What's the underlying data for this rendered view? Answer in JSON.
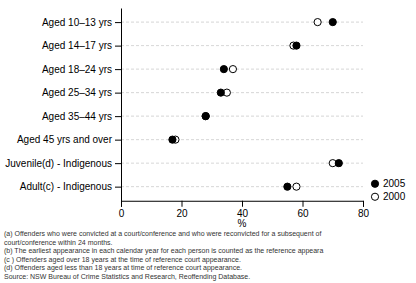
{
  "chart_data": {
    "type": "dot",
    "categories": [
      "Aged 10–13 yrs",
      "Aged 14–17 yrs",
      "Aged 18–24 yrs",
      "Aged 25–34 yrs",
      "Aged 35–44 yrs",
      "Aged 45 yrs and over",
      "Juvenile(d) - Indigenous",
      "Adult(c) - Indigenous"
    ],
    "series": [
      {
        "name": "2005",
        "color": "#000000",
        "marker": "circle",
        "values": [
          70,
          58,
          34,
          33,
          28,
          17,
          72,
          55
        ]
      },
      {
        "name": "2000",
        "color": "#000000",
        "marker": "circle-open",
        "values": [
          65,
          57,
          37,
          35,
          28,
          18,
          70,
          58
        ]
      }
    ],
    "x_label": "%",
    "xlim": [
      0,
      80
    ],
    "xticks": [
      0,
      20,
      40,
      60,
      80
    ],
    "grid": true,
    "legend": "lower right",
    "annotations": [
      "(a) Offenders who were convicted at a court/conference and who were reconvicted for a subsequent of",
      "court/conference within 24 months.",
      "(b) The earliest appearance in each calendar year for each person is counted as the reference appeara",
      "(c ) Offenders aged over 18 years at the time of reference court appearance.",
      "(d) Offenders aged less than 18 years at time of reference court appearance.",
      "Source: NSW Bureau of Crime Statistics and Research, Reoffending Database."
    ]
  }
}
